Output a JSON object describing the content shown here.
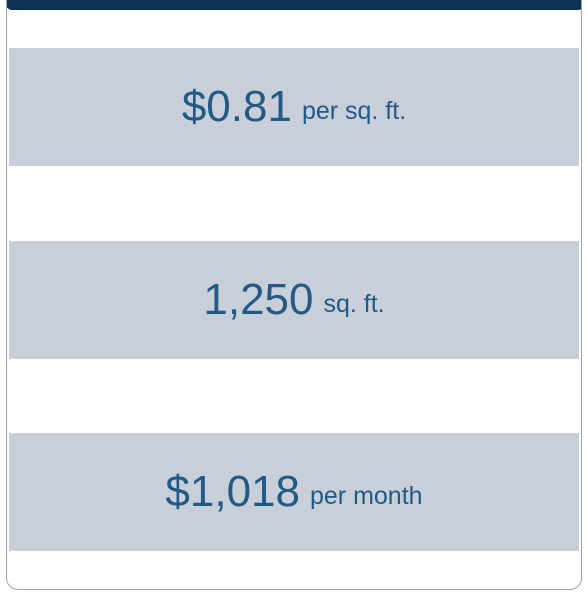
{
  "items": [
    {
      "value": "$0.81",
      "unit": "per sq. ft."
    },
    {
      "value": "1,250",
      "unit": "sq. ft."
    },
    {
      "value": "$1,018",
      "unit": "per month"
    }
  ]
}
